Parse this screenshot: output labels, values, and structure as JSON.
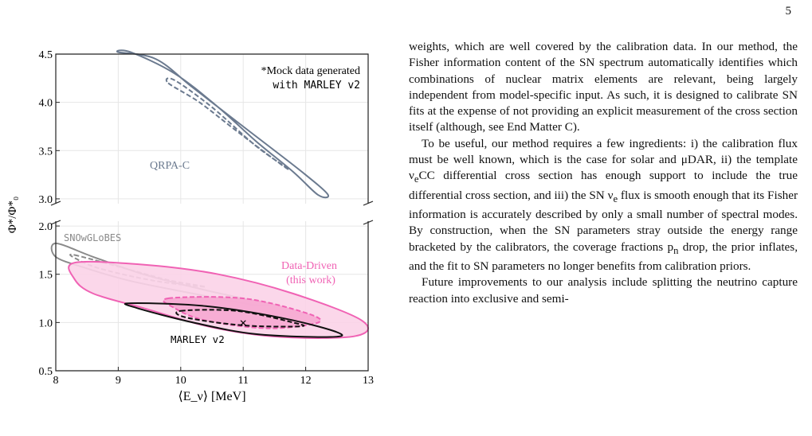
{
  "page": {
    "number": "5"
  },
  "figure": {
    "x_axis_label": "⟨E_ν⟩ [MeV]",
    "y_axis_label": "Φ*/Φ*₀",
    "x_ticks": [
      "8",
      "9",
      "10",
      "11",
      "12",
      "13"
    ],
    "y_ticks_top": [
      "3.0",
      "3.5",
      "4.0",
      "4.5"
    ],
    "y_ticks_bottom": [
      "0.5",
      "1.0",
      "1.5",
      "2.0"
    ],
    "mock_note_line1": "*Mock data generated",
    "mock_note_line2": "with MARLEY v2",
    "labels": {
      "qrpa": "QRPA-C",
      "snowglobes": "SNOwGLoBES",
      "data_driven_line1": "Data-Driven",
      "data_driven_line2": "(this work)",
      "marley": "MARLEY v2",
      "true_point": "×"
    },
    "colors": {
      "qrpa": "#6b7a8f",
      "snowglobes": "#8a8a8a",
      "data_driven": "#f062b4",
      "data_driven_fill": "#fbd3e8",
      "marley": "#111111"
    }
  },
  "chart_data": {
    "type": "contour",
    "xlabel": "⟨E_ν⟩ [MeV]",
    "ylabel": "Φ*/Φ*₀",
    "xlim": [
      8,
      13
    ],
    "ylim_top_panel": [
      2.95,
      4.5
    ],
    "ylim_bottom_panel": [
      0.5,
      2.05
    ],
    "axis_break": true,
    "true_value": {
      "x": 11.0,
      "y": 1.0
    },
    "series": [
      {
        "name": "QRPA-C",
        "color": "#6b7a8f",
        "outer": [
          [
            9.2,
            4.52
          ],
          [
            9.9,
            4.3
          ],
          [
            10.6,
            3.95
          ],
          [
            11.2,
            3.6
          ],
          [
            11.8,
            3.28
          ],
          [
            12.2,
            3.04
          ],
          [
            12.35,
            3.05
          ],
          [
            11.9,
            3.3
          ],
          [
            11.0,
            3.75
          ],
          [
            10.2,
            4.15
          ],
          [
            9.6,
            4.45
          ],
          [
            9.0,
            4.52
          ]
        ],
        "inner": [
          [
            9.8,
            4.2
          ],
          [
            10.3,
            4.0
          ],
          [
            10.9,
            3.7
          ],
          [
            11.6,
            3.36
          ],
          [
            11.7,
            3.32
          ],
          [
            11.2,
            3.55
          ],
          [
            10.5,
            3.95
          ],
          [
            9.9,
            4.23
          ]
        ]
      },
      {
        "name": "SNOwGLoBES",
        "color": "#8a8a8a",
        "outer": [
          [
            8.0,
            1.82
          ],
          [
            8.6,
            1.68
          ],
          [
            9.4,
            1.5
          ],
          [
            10.3,
            1.35
          ],
          [
            11.0,
            1.25
          ],
          [
            11.4,
            1.2
          ],
          [
            11.2,
            1.18
          ],
          [
            10.2,
            1.3
          ],
          [
            9.2,
            1.43
          ],
          [
            8.5,
            1.56
          ],
          [
            8.0,
            1.68
          ]
        ],
        "inner": [
          [
            8.3,
            1.7
          ],
          [
            9.0,
            1.58
          ],
          [
            9.8,
            1.44
          ],
          [
            10.4,
            1.37
          ],
          [
            9.6,
            1.43
          ],
          [
            8.7,
            1.56
          ],
          [
            8.3,
            1.67
          ]
        ]
      },
      {
        "name": "Data-Driven (this work)",
        "color": "#f062b4",
        "outer": [
          [
            8.3,
            1.62
          ],
          [
            9.4,
            1.6
          ],
          [
            10.6,
            1.5
          ],
          [
            11.8,
            1.3
          ],
          [
            12.9,
            1.02
          ],
          [
            12.8,
            0.86
          ],
          [
            11.6,
            0.85
          ],
          [
            10.5,
            0.95
          ],
          [
            9.4,
            1.15
          ],
          [
            8.6,
            1.3
          ],
          [
            8.3,
            1.45
          ]
        ],
        "inner": [
          [
            9.8,
            1.25
          ],
          [
            11.0,
            1.25
          ],
          [
            12.0,
            1.1
          ],
          [
            12.2,
            1.0
          ],
          [
            11.4,
            0.94
          ],
          [
            10.4,
            1.02
          ],
          [
            9.9,
            1.15
          ]
        ]
      },
      {
        "name": "MARLEY v2",
        "color": "#111111",
        "outer": [
          [
            9.2,
            1.2
          ],
          [
            10.4,
            1.17
          ],
          [
            11.6,
            1.05
          ],
          [
            12.5,
            0.9
          ],
          [
            12.4,
            0.85
          ],
          [
            11.2,
            0.88
          ],
          [
            10.2,
            1.0
          ],
          [
            9.3,
            1.15
          ]
        ],
        "inner": [
          [
            10.0,
            1.12
          ],
          [
            10.9,
            1.12
          ],
          [
            11.8,
            1.0
          ],
          [
            11.9,
            0.96
          ],
          [
            11.0,
            0.97
          ],
          [
            10.1,
            1.05
          ]
        ]
      }
    ]
  },
  "text": {
    "p1": "weights, which are well covered by the calibration data. In our method, the Fisher information content of the SN spectrum automatically identifies which combinations of nuclear matrix elements are relevant, being largely independent from model-specific input. As such, it is designed to calibrate SN fits at the expense of not providing an explicit measurement of the cross section itself (although, see End Matter C).",
    "p2_a": "To be useful, our method requires a few ingredients: i) the calibration flux must be well known, which is the case for solar and μDAR, ii) the template ν",
    "p2_a_sub": "e",
    "p2_b": "CC differential cross section has enough support to include the true differential cross section, and iii) the SN ν",
    "p2_b_sub": "e",
    "p2_c": " flux is smooth enough that its Fisher information is accurately described by only a small number of spectral modes. By construction, when the SN parameters stray outside the energy range bracketed by the calibrators, the coverage fractions p",
    "p2_c_sub": "n",
    "p2_d": " drop, the prior inflates, and the fit to SN parameters no longer benefits from calibration priors.",
    "p3": "Future improvements to our analysis include splitting the neutrino capture reaction into exclusive and semi-"
  }
}
